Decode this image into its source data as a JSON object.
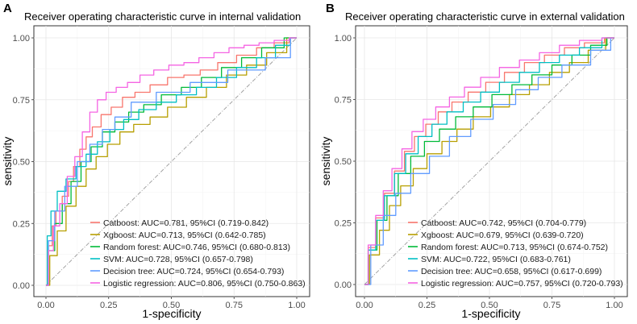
{
  "chart_data": [
    {
      "panel": "A",
      "type": "line",
      "title": "Receiver operating characteristic curve in internal validation",
      "xlabel": "1-specificity",
      "ylabel": "sensitivity",
      "xlim": [
        0,
        1
      ],
      "ylim": [
        0,
        1
      ],
      "xticks": [
        "0.00",
        "0.25",
        "0.50",
        "0.75",
        "1.00"
      ],
      "yticks": [
        "0.00",
        "0.25",
        "0.50",
        "0.75",
        "1.00"
      ],
      "grid": true,
      "legend_position": "bottom-right",
      "reference_line": "diagonal",
      "series": [
        {
          "name": "Catboost",
          "legend": "Catboost: AUC=0.781, 95%CI (0.719-0.842)",
          "color": "#F8766D",
          "x": [
            0,
            0.02,
            0.03,
            0.05,
            0.08,
            0.1,
            0.12,
            0.15,
            0.17,
            0.2,
            0.24,
            0.28,
            0.33,
            0.38,
            0.45,
            0.52,
            0.58,
            0.65,
            0.72,
            0.8,
            0.88,
            0.94,
            1.0
          ],
          "y": [
            0,
            0.16,
            0.24,
            0.3,
            0.36,
            0.42,
            0.48,
            0.55,
            0.6,
            0.64,
            0.69,
            0.72,
            0.76,
            0.78,
            0.81,
            0.84,
            0.85,
            0.87,
            0.9,
            0.93,
            0.96,
            0.98,
            1.0
          ]
        },
        {
          "name": "Xgboost",
          "legend": "Xgboost: AUC=0.713, 95%CI (0.642-0.785)",
          "color": "#B79F00",
          "x": [
            0,
            0.03,
            0.06,
            0.1,
            0.14,
            0.18,
            0.22,
            0.27,
            0.32,
            0.38,
            0.45,
            0.52,
            0.6,
            0.68,
            0.76,
            0.84,
            0.92,
            1.0
          ],
          "y": [
            0,
            0.12,
            0.22,
            0.32,
            0.4,
            0.47,
            0.52,
            0.57,
            0.62,
            0.65,
            0.68,
            0.72,
            0.76,
            0.8,
            0.85,
            0.89,
            0.94,
            1.0
          ]
        },
        {
          "name": "Random forest",
          "legend": "Random forest: AUC=0.746, 95%CI (0.680-0.813)",
          "color": "#00BA38",
          "x": [
            0,
            0.02,
            0.05,
            0.08,
            0.12,
            0.16,
            0.2,
            0.25,
            0.3,
            0.36,
            0.42,
            0.5,
            0.58,
            0.66,
            0.74,
            0.82,
            0.9,
            1.0
          ],
          "y": [
            0,
            0.14,
            0.25,
            0.33,
            0.42,
            0.5,
            0.56,
            0.62,
            0.66,
            0.7,
            0.73,
            0.77,
            0.8,
            0.84,
            0.88,
            0.92,
            0.96,
            1.0
          ]
        },
        {
          "name": "SVM",
          "legend": "SVM: AUC=0.728, 95%CI (0.657-0.798)",
          "color": "#00BFC4",
          "x": [
            0,
            0.01,
            0.03,
            0.06,
            0.1,
            0.14,
            0.18,
            0.23,
            0.28,
            0.34,
            0.4,
            0.48,
            0.56,
            0.64,
            0.72,
            0.8,
            0.88,
            0.95,
            1.0
          ],
          "y": [
            0,
            0.2,
            0.3,
            0.38,
            0.43,
            0.48,
            0.53,
            0.58,
            0.63,
            0.67,
            0.71,
            0.74,
            0.77,
            0.8,
            0.84,
            0.88,
            0.92,
            0.97,
            1.0
          ]
        },
        {
          "name": "Decision tree",
          "legend": "Decision tree: AUC=0.724, 95%CI (0.654-0.793)",
          "color": "#619CFF",
          "x": [
            0,
            0.02,
            0.05,
            0.1,
            0.15,
            0.2,
            0.25,
            0.3,
            0.38,
            0.5,
            0.65,
            0.8,
            0.95,
            1.0
          ],
          "y": [
            0,
            0.18,
            0.3,
            0.4,
            0.5,
            0.57,
            0.63,
            0.68,
            0.74,
            0.78,
            0.82,
            0.87,
            0.92,
            1.0
          ]
        },
        {
          "name": "Logistic regression",
          "legend": "Logistic regression: AUC=0.806, 95%CI (0.750-0.863)",
          "color": "#F564E3",
          "x": [
            0,
            0.02,
            0.04,
            0.07,
            0.1,
            0.13,
            0.16,
            0.19,
            0.22,
            0.26,
            0.3,
            0.35,
            0.4,
            0.46,
            0.52,
            0.58,
            0.64,
            0.7,
            0.76,
            0.82,
            0.88,
            0.94,
            1.0
          ],
          "y": [
            0,
            0.14,
            0.24,
            0.33,
            0.44,
            0.52,
            0.62,
            0.7,
            0.75,
            0.78,
            0.8,
            0.82,
            0.85,
            0.87,
            0.89,
            0.9,
            0.92,
            0.94,
            0.96,
            0.97,
            0.98,
            0.99,
            1.0
          ]
        }
      ]
    },
    {
      "panel": "B",
      "type": "line",
      "title": "Receiver operating characteristic curve in external validation",
      "xlabel": "1-specificity",
      "ylabel": "sensitivity",
      "xlim": [
        0,
        1
      ],
      "ylim": [
        0,
        1
      ],
      "xticks": [
        "0.00",
        "0.25",
        "0.50",
        "0.75",
        "1.00"
      ],
      "yticks": [
        "0.00",
        "0.25",
        "0.50",
        "0.75",
        "1.00"
      ],
      "grid": true,
      "legend_position": "bottom-right",
      "reference_line": "diagonal",
      "series": [
        {
          "name": "Catboost",
          "legend": "Catboost: AUC=0.742, 95%CI (0.704-0.779)",
          "color": "#F8766D",
          "x": [
            0,
            0.03,
            0.06,
            0.1,
            0.14,
            0.18,
            0.22,
            0.27,
            0.32,
            0.38,
            0.45,
            0.52,
            0.6,
            0.68,
            0.76,
            0.84,
            0.92,
            1.0
          ],
          "y": [
            0,
            0.15,
            0.27,
            0.37,
            0.46,
            0.54,
            0.6,
            0.65,
            0.7,
            0.74,
            0.78,
            0.82,
            0.86,
            0.9,
            0.93,
            0.96,
            0.98,
            1.0
          ]
        },
        {
          "name": "Xgboost",
          "legend": "Xgboost: AUC=0.679, 95%CI (0.639-0.720)",
          "color": "#B79F00",
          "x": [
            0,
            0.04,
            0.08,
            0.12,
            0.17,
            0.22,
            0.28,
            0.34,
            0.4,
            0.47,
            0.54,
            0.62,
            0.7,
            0.78,
            0.86,
            0.93,
            1.0
          ],
          "y": [
            0,
            0.12,
            0.22,
            0.32,
            0.4,
            0.47,
            0.53,
            0.58,
            0.63,
            0.68,
            0.72,
            0.77,
            0.81,
            0.86,
            0.9,
            0.95,
            1.0
          ]
        },
        {
          "name": "Random forest",
          "legend": "Random forest: AUC=0.713, 95%CI (0.674-0.752)",
          "color": "#00BA38",
          "x": [
            0,
            0.03,
            0.07,
            0.11,
            0.16,
            0.21,
            0.27,
            0.33,
            0.4,
            0.47,
            0.55,
            0.63,
            0.71,
            0.79,
            0.87,
            0.94,
            1.0
          ],
          "y": [
            0,
            0.14,
            0.26,
            0.36,
            0.45,
            0.52,
            0.58,
            0.63,
            0.68,
            0.72,
            0.77,
            0.81,
            0.85,
            0.89,
            0.93,
            0.97,
            1.0
          ]
        },
        {
          "name": "SVM",
          "legend": "SVM: AUC=0.722, 95%CI (0.683-0.761)",
          "color": "#00BFC4",
          "x": [
            0,
            0.03,
            0.06,
            0.1,
            0.14,
            0.19,
            0.24,
            0.3,
            0.36,
            0.43,
            0.5,
            0.58,
            0.66,
            0.74,
            0.82,
            0.9,
            1.0
          ],
          "y": [
            0,
            0.14,
            0.26,
            0.36,
            0.45,
            0.53,
            0.6,
            0.65,
            0.7,
            0.74,
            0.78,
            0.82,
            0.86,
            0.9,
            0.93,
            0.96,
            1.0
          ]
        },
        {
          "name": "Decision tree",
          "legend": "Decision tree: AUC=0.658, 95%CI (0.617-0.699)",
          "color": "#619CFF",
          "x": [
            0,
            0.05,
            0.1,
            0.15,
            0.22,
            0.3,
            0.38,
            0.47,
            0.56,
            0.65,
            0.74,
            0.84,
            0.97,
            1.0
          ],
          "y": [
            0,
            0.16,
            0.28,
            0.37,
            0.45,
            0.52,
            0.6,
            0.67,
            0.73,
            0.79,
            0.84,
            0.89,
            0.95,
            1.0
          ]
        },
        {
          "name": "Logistic regression",
          "legend": "Logistic regression: AUC=0.757, 95%CI (0.720-0.793)",
          "color": "#F564E3",
          "x": [
            0,
            0.03,
            0.06,
            0.09,
            0.13,
            0.17,
            0.21,
            0.26,
            0.31,
            0.37,
            0.43,
            0.5,
            0.58,
            0.66,
            0.74,
            0.82,
            0.9,
            1.0
          ],
          "y": [
            0,
            0.16,
            0.28,
            0.38,
            0.47,
            0.55,
            0.62,
            0.67,
            0.72,
            0.76,
            0.8,
            0.84,
            0.88,
            0.91,
            0.94,
            0.97,
            0.99,
            1.0
          ]
        }
      ]
    }
  ]
}
